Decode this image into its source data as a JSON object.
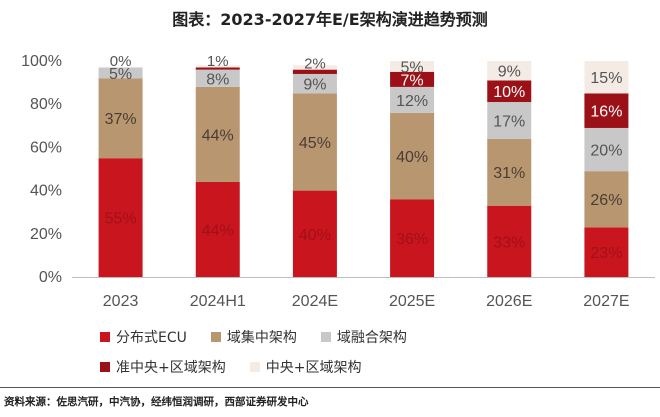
{
  "source_note": "资料来源：佐思汽研，中汽协，经纬恒润调研，西部证券研发中心",
  "chart_data": {
    "type": "bar",
    "stacked": true,
    "title": "图表：2023-2027年E/E架构演进趋势预测",
    "categories": [
      "2023",
      "2024H1",
      "2024E",
      "2025E",
      "2026E",
      "2027E"
    ],
    "y_ticks": [
      "0%",
      "20%",
      "40%",
      "60%",
      "80%",
      "100%"
    ],
    "ylim": [
      0,
      100
    ],
    "grid": false,
    "legend_position": "bottom",
    "series": [
      {
        "name": "分布式ECU",
        "color": "#c9151e",
        "label_color": "#a30f18",
        "values": [
          55,
          44,
          40,
          36,
          33,
          23
        ],
        "labels": [
          "55%",
          "44%",
          "40%",
          "36%",
          "33%",
          "23%"
        ]
      },
      {
        "name": "域集中架构",
        "color": "#b89670",
        "label_color": "#4a3e34",
        "values": [
          37,
          44,
          45,
          40,
          31,
          26
        ],
        "labels": [
          "37%",
          "44%",
          "45%",
          "40%",
          "31%",
          "26%"
        ]
      },
      {
        "name": "域融合架构",
        "color": "#c8c8c8",
        "label_color": "#555555",
        "values": [
          5,
          8,
          9,
          12,
          17,
          20
        ],
        "labels": [
          "5%",
          "8%",
          "9%",
          "12%",
          "17%",
          "20%"
        ]
      },
      {
        "name": "准中央+区域架构",
        "color": "#9b1117",
        "label_color": "#ffffff",
        "values": [
          0,
          1,
          2,
          7,
          10,
          16
        ],
        "labels": [
          "",
          "",
          "",
          "7%",
          "10%",
          "16%"
        ]
      },
      {
        "name": "中央+区域架构",
        "color": "#f3ebe4",
        "label_color": "#555555",
        "values": [
          0,
          1,
          2,
          5,
          9,
          15
        ],
        "labels": [
          "",
          "",
          "",
          "5%",
          "9%",
          "15%"
        ]
      }
    ],
    "overflow_labels": [
      {
        "category": 0,
        "text": "0%",
        "y": 99
      },
      {
        "category": 1,
        "text": "1%",
        "y": 99
      },
      {
        "category": 2,
        "text": "2%",
        "y": 98
      }
    ]
  }
}
